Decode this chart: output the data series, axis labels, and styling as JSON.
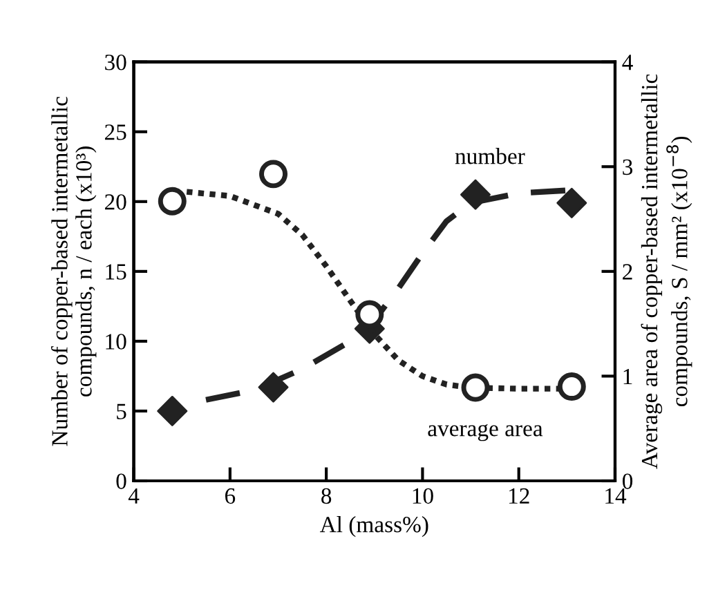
{
  "chart_data": {
    "type": "scatter",
    "xlabel": "Al (mass%)",
    "ylabel": "Number of copper-based intermetallic\ncompounds, n / each (x10³)",
    "y2label": "Average area of copper-based intermetallic\ncompounds, S / mm² (x10$^{−8}$)",
    "x": [
      4.8,
      6.9,
      8.9,
      11.1,
      13.1
    ],
    "series": [
      {
        "type": "line",
        "color": "#222222",
        "line_style": "dashed",
        "marker": "none",
        "x": [
          5.5,
          6.5,
          7.5,
          8.5,
          9,
          9.5,
          10,
          10.5,
          11,
          12,
          13
        ],
        "values": [
          5.8,
          6.5,
          8.0,
          10.0,
          11.5,
          13.8,
          16.3,
          18.6,
          19.9,
          20.6,
          20.8
        ]
      },
      {
        "type": "line",
        "axis": "y2",
        "color": "#222222",
        "line_style": "dotted",
        "marker": "none",
        "x": [
          5.1,
          6,
          7,
          7.5,
          8,
          8.5,
          9,
          9.5,
          10,
          10.5,
          11,
          12,
          13
        ],
        "values": [
          2.76,
          2.72,
          2.55,
          2.35,
          2.05,
          1.72,
          1.4,
          1.15,
          1.0,
          0.92,
          0.89,
          0.88,
          0.88
        ]
      },
      {
        "color": "#222222",
        "marker": "diamond",
        "values": [
          5.0,
          6.7,
          10.9,
          20.5,
          19.9
        ]
      },
      {
        "axis": "y2",
        "color": "#222222",
        "marker": "circle",
        "values": [
          2.67,
          2.93,
          1.59,
          0.89,
          0.9
        ]
      }
    ],
    "annotations": [
      "number",
      "average area"
    ],
    "xlim": [
      4,
      14
    ],
    "xticks": [
      4,
      6,
      8,
      10,
      12,
      14
    ],
    "ylim": [
      0,
      30
    ],
    "yticks": [
      0,
      5,
      10,
      15,
      20,
      25,
      30
    ],
    "y2lim": [
      0,
      4
    ],
    "y2ticks": [
      0,
      1,
      2,
      3,
      4
    ],
    "grid": false,
    "legend": false
  }
}
